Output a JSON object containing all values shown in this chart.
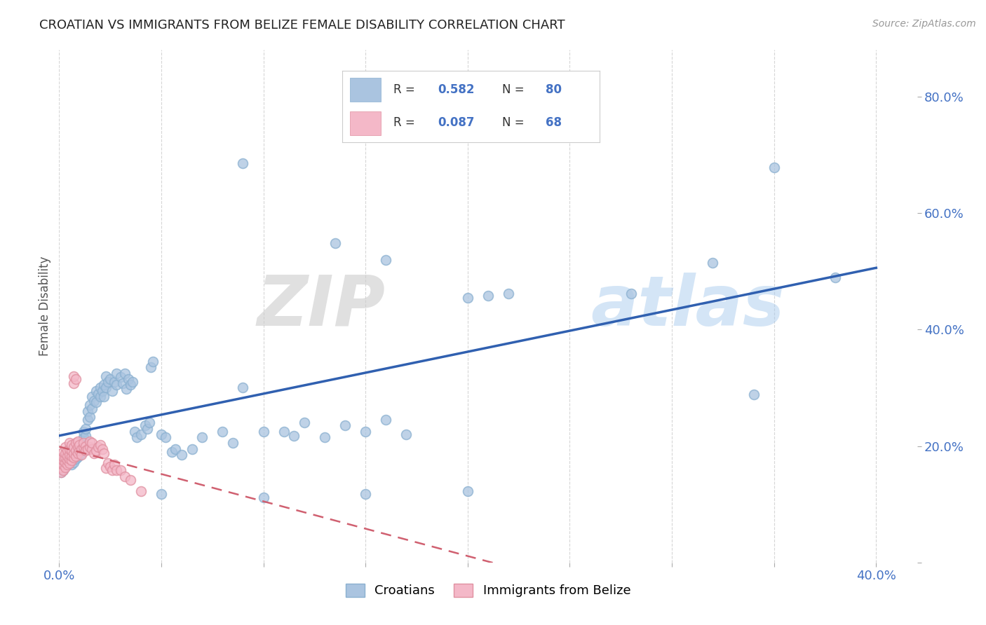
{
  "title": "CROATIAN VS IMMIGRANTS FROM BELIZE FEMALE DISABILITY CORRELATION CHART",
  "source": "Source: ZipAtlas.com",
  "ylabel": "Female Disability",
  "xlim": [
    0.0,
    0.42
  ],
  "ylim": [
    0.0,
    0.88
  ],
  "yticks_right": [
    0.0,
    0.2,
    0.4,
    0.6,
    0.8
  ],
  "ytick_labels_right": [
    "",
    "20.0%",
    "40.0%",
    "60.0%",
    "80.0%"
  ],
  "xtick_positions": [
    0.0,
    0.05,
    0.1,
    0.15,
    0.2,
    0.25,
    0.3,
    0.35,
    0.4
  ],
  "xtick_labels": [
    "0.0%",
    "",
    "",
    "",
    "",
    "",
    "",
    "",
    "40.0%"
  ],
  "background_color": "#ffffff",
  "grid_color": "#cccccc",
  "croatian_color": "#aac4e0",
  "croatian_edge_color": "#8ab0d0",
  "belize_color": "#f4b8c8",
  "belize_edge_color": "#e090a0",
  "croatian_line_color": "#3060b0",
  "belize_line_color": "#d06070",
  "watermark_zip": "ZIP",
  "watermark_atlas": "atlas",
  "croatian_scatter": [
    [
      0.001,
      0.16
    ],
    [
      0.001,
      0.155
    ],
    [
      0.002,
      0.158
    ],
    [
      0.002,
      0.162
    ],
    [
      0.003,
      0.165
    ],
    [
      0.003,
      0.17
    ],
    [
      0.004,
      0.168
    ],
    [
      0.004,
      0.172
    ],
    [
      0.005,
      0.17
    ],
    [
      0.005,
      0.175
    ],
    [
      0.006,
      0.168
    ],
    [
      0.006,
      0.178
    ],
    [
      0.007,
      0.172
    ],
    [
      0.007,
      0.18
    ],
    [
      0.008,
      0.178
    ],
    [
      0.008,
      0.183
    ],
    [
      0.009,
      0.182
    ],
    [
      0.009,
      0.19
    ],
    [
      0.01,
      0.185
    ],
    [
      0.01,
      0.195
    ],
    [
      0.011,
      0.188
    ],
    [
      0.011,
      0.2
    ],
    [
      0.012,
      0.215
    ],
    [
      0.012,
      0.225
    ],
    [
      0.013,
      0.218
    ],
    [
      0.013,
      0.23
    ],
    [
      0.014,
      0.245
    ],
    [
      0.014,
      0.26
    ],
    [
      0.015,
      0.25
    ],
    [
      0.015,
      0.27
    ],
    [
      0.016,
      0.265
    ],
    [
      0.016,
      0.285
    ],
    [
      0.017,
      0.278
    ],
    [
      0.018,
      0.295
    ],
    [
      0.018,
      0.275
    ],
    [
      0.019,
      0.29
    ],
    [
      0.02,
      0.3
    ],
    [
      0.02,
      0.285
    ],
    [
      0.021,
      0.295
    ],
    [
      0.022,
      0.305
    ],
    [
      0.022,
      0.285
    ],
    [
      0.023,
      0.3
    ],
    [
      0.023,
      0.32
    ],
    [
      0.024,
      0.31
    ],
    [
      0.025,
      0.315
    ],
    [
      0.026,
      0.295
    ],
    [
      0.027,
      0.31
    ],
    [
      0.028,
      0.305
    ],
    [
      0.028,
      0.325
    ],
    [
      0.03,
      0.318
    ],
    [
      0.031,
      0.308
    ],
    [
      0.032,
      0.325
    ],
    [
      0.033,
      0.298
    ],
    [
      0.034,
      0.315
    ],
    [
      0.035,
      0.305
    ],
    [
      0.036,
      0.31
    ],
    [
      0.037,
      0.225
    ],
    [
      0.038,
      0.215
    ],
    [
      0.04,
      0.22
    ],
    [
      0.042,
      0.235
    ],
    [
      0.043,
      0.23
    ],
    [
      0.044,
      0.24
    ],
    [
      0.045,
      0.335
    ],
    [
      0.046,
      0.345
    ],
    [
      0.05,
      0.22
    ],
    [
      0.052,
      0.215
    ],
    [
      0.055,
      0.19
    ],
    [
      0.057,
      0.195
    ],
    [
      0.06,
      0.185
    ],
    [
      0.065,
      0.195
    ],
    [
      0.07,
      0.215
    ],
    [
      0.08,
      0.225
    ],
    [
      0.085,
      0.205
    ],
    [
      0.09,
      0.3
    ],
    [
      0.1,
      0.225
    ],
    [
      0.11,
      0.225
    ],
    [
      0.115,
      0.218
    ],
    [
      0.12,
      0.24
    ],
    [
      0.13,
      0.215
    ],
    [
      0.14,
      0.235
    ],
    [
      0.15,
      0.225
    ],
    [
      0.16,
      0.245
    ],
    [
      0.17,
      0.22
    ],
    [
      0.09,
      0.685
    ],
    [
      0.135,
      0.548
    ],
    [
      0.2,
      0.455
    ],
    [
      0.21,
      0.458
    ],
    [
      0.22,
      0.462
    ],
    [
      0.28,
      0.462
    ],
    [
      0.16,
      0.52
    ],
    [
      0.32,
      0.515
    ],
    [
      0.05,
      0.118
    ],
    [
      0.1,
      0.112
    ],
    [
      0.15,
      0.118
    ],
    [
      0.2,
      0.122
    ],
    [
      0.34,
      0.288
    ],
    [
      0.35,
      0.678
    ],
    [
      0.38,
      0.49
    ]
  ],
  "belize_scatter": [
    [
      0.001,
      0.155
    ],
    [
      0.001,
      0.163
    ],
    [
      0.001,
      0.17
    ],
    [
      0.001,
      0.178
    ],
    [
      0.002,
      0.158
    ],
    [
      0.002,
      0.168
    ],
    [
      0.002,
      0.175
    ],
    [
      0.002,
      0.182
    ],
    [
      0.002,
      0.19
    ],
    [
      0.003,
      0.163
    ],
    [
      0.003,
      0.172
    ],
    [
      0.003,
      0.18
    ],
    [
      0.003,
      0.188
    ],
    [
      0.003,
      0.198
    ],
    [
      0.004,
      0.168
    ],
    [
      0.004,
      0.175
    ],
    [
      0.004,
      0.183
    ],
    [
      0.004,
      0.192
    ],
    [
      0.005,
      0.17
    ],
    [
      0.005,
      0.178
    ],
    [
      0.005,
      0.185
    ],
    [
      0.005,
      0.195
    ],
    [
      0.005,
      0.205
    ],
    [
      0.006,
      0.175
    ],
    [
      0.006,
      0.183
    ],
    [
      0.006,
      0.192
    ],
    [
      0.006,
      0.202
    ],
    [
      0.007,
      0.18
    ],
    [
      0.007,
      0.188
    ],
    [
      0.007,
      0.198
    ],
    [
      0.007,
      0.308
    ],
    [
      0.007,
      0.32
    ],
    [
      0.008,
      0.183
    ],
    [
      0.008,
      0.192
    ],
    [
      0.008,
      0.205
    ],
    [
      0.008,
      0.315
    ],
    [
      0.009,
      0.188
    ],
    [
      0.009,
      0.198
    ],
    [
      0.009,
      0.208
    ],
    [
      0.01,
      0.192
    ],
    [
      0.01,
      0.202
    ],
    [
      0.011,
      0.195
    ],
    [
      0.011,
      0.185
    ],
    [
      0.012,
      0.198
    ],
    [
      0.012,
      0.205
    ],
    [
      0.013,
      0.2
    ],
    [
      0.013,
      0.192
    ],
    [
      0.014,
      0.195
    ],
    [
      0.015,
      0.198
    ],
    [
      0.015,
      0.208
    ],
    [
      0.016,
      0.195
    ],
    [
      0.016,
      0.205
    ],
    [
      0.017,
      0.188
    ],
    [
      0.018,
      0.192
    ],
    [
      0.019,
      0.198
    ],
    [
      0.02,
      0.202
    ],
    [
      0.021,
      0.195
    ],
    [
      0.022,
      0.188
    ],
    [
      0.023,
      0.162
    ],
    [
      0.024,
      0.17
    ],
    [
      0.025,
      0.165
    ],
    [
      0.026,
      0.158
    ],
    [
      0.027,
      0.168
    ],
    [
      0.028,
      0.158
    ],
    [
      0.03,
      0.158
    ],
    [
      0.032,
      0.148
    ],
    [
      0.035,
      0.142
    ],
    [
      0.04,
      0.122
    ]
  ]
}
